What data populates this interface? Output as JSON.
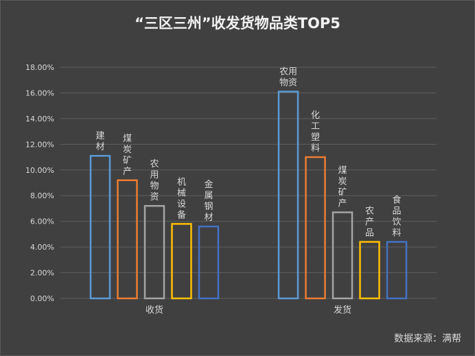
{
  "chart_data": {
    "type": "bar",
    "title": "“三区三州”收发货物品类TOP5",
    "ylim": [
      0,
      18
    ],
    "y_ticks": [
      "0.00%",
      "2.00%",
      "4.00%",
      "6.00%",
      "8.00%",
      "10.00%",
      "12.00%",
      "14.00%",
      "16.00%",
      "18.00%"
    ],
    "grid": true,
    "groups": [
      {
        "name": "收货",
        "bars": [
          {
            "label": "建材",
            "value": 11.1,
            "color": "#5b9bd5"
          },
          {
            "label": "煤炭矿产",
            "value": 9.2,
            "color": "#ed7d31"
          },
          {
            "label": "农用物资",
            "value": 7.2,
            "color": "#a5a5a5"
          },
          {
            "label": "机械设备",
            "value": 5.8,
            "color": "#ffc000"
          },
          {
            "label": "金属钢材",
            "value": 5.6,
            "color": "#4472c4"
          }
        ]
      },
      {
        "name": "发货",
        "bars": [
          {
            "label": "农用物资",
            "value": 16.1,
            "color": "#5b9bd5"
          },
          {
            "label": "化工塑料",
            "value": 11.0,
            "color": "#ed7d31"
          },
          {
            "label": "煤炭矿产",
            "value": 6.7,
            "color": "#a5a5a5"
          },
          {
            "label": "农产品",
            "value": 4.4,
            "color": "#ffc000"
          },
          {
            "label": "食品饮料",
            "value": 4.4,
            "color": "#4472c4"
          }
        ]
      }
    ]
  },
  "source": "数据来源：满帮"
}
